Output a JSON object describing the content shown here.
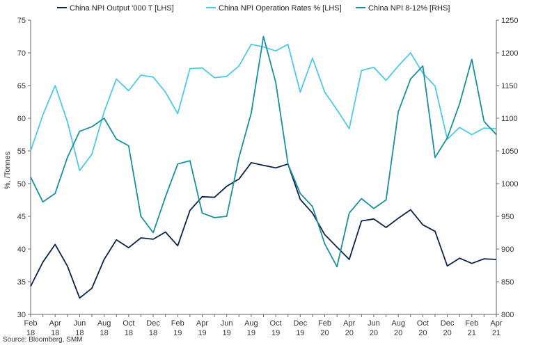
{
  "chart_data": {
    "type": "line",
    "title": "",
    "ylabel": "%, /Tonnes",
    "y2label": "",
    "source": "Source: Bloomberg, SMM",
    "ylim": [
      30,
      75
    ],
    "y2lim": [
      800,
      1250
    ],
    "yticks": [
      30,
      35,
      40,
      45,
      50,
      55,
      60,
      65,
      70,
      75
    ],
    "y2ticks": [
      800,
      850,
      900,
      950,
      1000,
      1050,
      1100,
      1150,
      1200,
      1250
    ],
    "grid": false,
    "legend": "top",
    "x_ticks": [
      {
        "month": "Feb",
        "year": "18"
      },
      {
        "month": "Apr",
        "year": "18"
      },
      {
        "month": "Jun",
        "year": "18"
      },
      {
        "month": "Aug",
        "year": "18"
      },
      {
        "month": "Oct",
        "year": "18"
      },
      {
        "month": "Dec",
        "year": "18"
      },
      {
        "month": "Feb",
        "year": "19"
      },
      {
        "month": "Apr",
        "year": "19"
      },
      {
        "month": "Jun",
        "year": "19"
      },
      {
        "month": "Aug",
        "year": "19"
      },
      {
        "month": "Oct",
        "year": "19"
      },
      {
        "month": "Dec",
        "year": "19"
      },
      {
        "month": "Feb",
        "year": "20"
      },
      {
        "month": "Apr",
        "year": "20"
      },
      {
        "month": "Jun",
        "year": "20"
      },
      {
        "month": "Aug",
        "year": "20"
      },
      {
        "month": "Oct",
        "year": "20"
      },
      {
        "month": "Dec",
        "year": "20"
      },
      {
        "month": "Feb",
        "year": "21"
      },
      {
        "month": "Apr",
        "year": "21"
      }
    ],
    "series": [
      {
        "name": "China NPI Output '000 T [LHS]",
        "axis": "left",
        "color": "#0d2149",
        "values": [
          34.3,
          38.0,
          40.7,
          37.4,
          32.5,
          34.0,
          38.4,
          41.4,
          40.2,
          41.7,
          41.5,
          42.6,
          40.5,
          45.9,
          48.0,
          47.9,
          49.6,
          50.7,
          53.2,
          52.8,
          52.4,
          53.0,
          47.6,
          45.5,
          42.2,
          40.3,
          38.4,
          44.3,
          44.6,
          43.3,
          44.7,
          46.0,
          43.7,
          42.7,
          37.4,
          38.6,
          37.8,
          38.5,
          38.4
        ]
      },
      {
        "name": "China NPI Operation Rates % [LHS]",
        "axis": "left",
        "color": "#4dcbe6",
        "values": [
          55.0,
          60.5,
          65.0,
          59.5,
          52.0,
          54.5,
          61.0,
          66.0,
          64.2,
          66.6,
          66.3,
          64.0,
          60.7,
          67.6,
          67.7,
          66.2,
          66.4,
          68.0,
          71.3,
          70.9,
          70.3,
          71.3,
          64.0,
          69.2,
          64.0,
          61.3,
          58.4,
          67.3,
          67.8,
          65.8,
          68.0,
          70.0,
          66.9,
          64.9,
          56.8,
          58.6,
          57.5,
          58.5,
          58.4
        ]
      },
      {
        "name": "China NPI 8-12% [RHS]",
        "axis": "right",
        "color": "#17909f",
        "values": [
          1010,
          972,
          985,
          1040,
          1080,
          1087,
          1100,
          1068,
          1058,
          950,
          925,
          980,
          1030,
          1035,
          955,
          948,
          950,
          1040,
          1108,
          1225,
          1155,
          1030,
          985,
          965,
          908,
          873,
          955,
          977,
          962,
          975,
          1110,
          1160,
          1180,
          1040,
          1070,
          1122,
          1190,
          1095,
          1075
        ]
      }
    ]
  }
}
